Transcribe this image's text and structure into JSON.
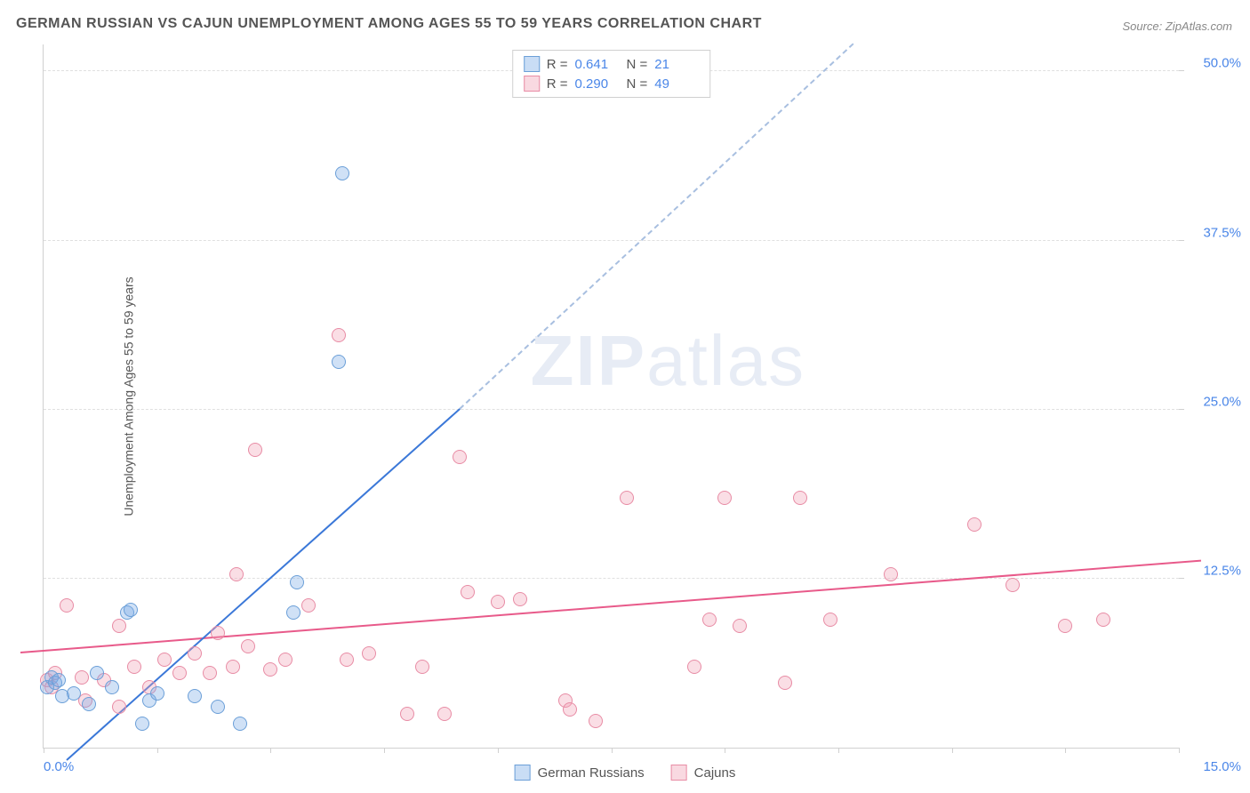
{
  "chart": {
    "type": "scatter",
    "title": "GERMAN RUSSIAN VS CAJUN UNEMPLOYMENT AMONG AGES 55 TO 59 YEARS CORRELATION CHART",
    "source": "Source: ZipAtlas.com",
    "y_axis_label": "Unemployment Among Ages 55 to 59 years",
    "watermark": "ZIPatlas",
    "background_color": "#ffffff",
    "grid_color": "#e0e0e0",
    "axis_color": "#d0d0d0",
    "title_color": "#555555",
    "title_fontsize": 16,
    "label_fontsize": 14,
    "tick_label_color": "#4a86e8",
    "tick_label_fontsize": 15,
    "xlim": [
      0,
      15
    ],
    "ylim": [
      0,
      52
    ],
    "x_start_label": "0.0%",
    "x_end_label": "15.0%",
    "x_tick_positions": [
      0,
      1.5,
      3,
      4.5,
      6,
      7.5,
      9,
      10.5,
      12,
      13.5,
      15
    ],
    "y_ticks": [
      {
        "pos": 12.5,
        "label": "12.5%"
      },
      {
        "pos": 25.0,
        "label": "25.0%"
      },
      {
        "pos": 37.5,
        "label": "37.5%"
      },
      {
        "pos": 50.0,
        "label": "50.0%"
      }
    ],
    "series": [
      {
        "name": "German Russians",
        "color_fill": "rgba(120,170,230,0.35)",
        "color_stroke": "#6b9fd8",
        "line_color": "#3b78d8",
        "dash_color": "#a8bfe0",
        "marker_size": 16,
        "line_width": 2,
        "R": "0.641",
        "N": "21",
        "regression": {
          "x1": 0.3,
          "y1": -1,
          "x2": 5.5,
          "y2": 25.0,
          "dash_to_x": 10.7,
          "dash_to_y": 52
        },
        "points": [
          [
            0.05,
            4.5
          ],
          [
            0.1,
            5.2
          ],
          [
            0.15,
            4.8
          ],
          [
            0.2,
            5.0
          ],
          [
            0.25,
            3.8
          ],
          [
            0.4,
            4.0
          ],
          [
            0.6,
            3.2
          ],
          [
            0.7,
            5.5
          ],
          [
            0.9,
            4.5
          ],
          [
            1.1,
            10.0
          ],
          [
            1.15,
            10.2
          ],
          [
            1.3,
            1.8
          ],
          [
            1.4,
            3.5
          ],
          [
            1.5,
            4.0
          ],
          [
            2.0,
            3.8
          ],
          [
            2.3,
            3.0
          ],
          [
            2.6,
            1.8
          ],
          [
            3.3,
            10.0
          ],
          [
            3.35,
            12.2
          ],
          [
            3.9,
            28.5
          ],
          [
            3.95,
            42.5
          ]
        ]
      },
      {
        "name": "Cajuns",
        "color_fill": "rgba(240,160,180,0.35)",
        "color_stroke": "#e88ca5",
        "line_color": "#e85a8a",
        "marker_size": 16,
        "line_width": 2,
        "R": "0.290",
        "N": "49",
        "regression": {
          "x1": -0.3,
          "y1": 7.0,
          "x2": 15.3,
          "y2": 13.8
        },
        "points": [
          [
            0.05,
            5.0
          ],
          [
            0.1,
            4.5
          ],
          [
            0.15,
            5.5
          ],
          [
            0.3,
            10.5
          ],
          [
            0.5,
            5.2
          ],
          [
            0.55,
            3.5
          ],
          [
            0.8,
            5.0
          ],
          [
            1.0,
            9.0
          ],
          [
            1.2,
            6.0
          ],
          [
            1.4,
            4.5
          ],
          [
            1.6,
            6.5
          ],
          [
            1.8,
            5.5
          ],
          [
            2.0,
            7.0
          ],
          [
            2.2,
            5.5
          ],
          [
            2.3,
            8.5
          ],
          [
            2.5,
            6.0
          ],
          [
            2.55,
            12.8
          ],
          [
            2.7,
            7.5
          ],
          [
            2.8,
            22.0
          ],
          [
            3.0,
            5.8
          ],
          [
            3.2,
            6.5
          ],
          [
            3.5,
            10.5
          ],
          [
            3.9,
            30.5
          ],
          [
            4.0,
            6.5
          ],
          [
            4.3,
            7.0
          ],
          [
            4.8,
            2.5
          ],
          [
            5.3,
            2.5
          ],
          [
            5.5,
            21.5
          ],
          [
            5.6,
            11.5
          ],
          [
            6.0,
            10.8
          ],
          [
            6.3,
            11.0
          ],
          [
            6.9,
            3.5
          ],
          [
            6.95,
            2.8
          ],
          [
            7.3,
            2.0
          ],
          [
            7.7,
            18.5
          ],
          [
            8.6,
            6.0
          ],
          [
            8.8,
            9.5
          ],
          [
            9.0,
            18.5
          ],
          [
            9.2,
            9.0
          ],
          [
            9.8,
            4.8
          ],
          [
            10.0,
            18.5
          ],
          [
            10.4,
            9.5
          ],
          [
            11.2,
            12.8
          ],
          [
            12.3,
            16.5
          ],
          [
            12.8,
            12.0
          ],
          [
            13.5,
            9.0
          ],
          [
            14.0,
            9.5
          ],
          [
            5.0,
            6.0
          ],
          [
            1.0,
            3.0
          ]
        ]
      }
    ],
    "legend_bottom": [
      {
        "swatch": "blue",
        "label": "German Russians"
      },
      {
        "swatch": "pink",
        "label": "Cajuns"
      }
    ]
  }
}
